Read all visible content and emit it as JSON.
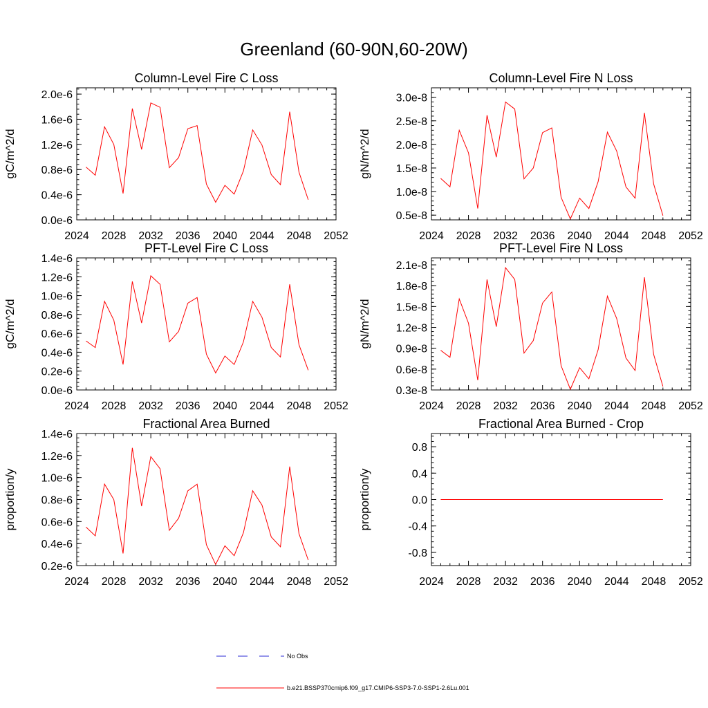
{
  "figure": {
    "title": "Greenland (60-90N,60-20W)"
  },
  "legend": {
    "entries": [
      {
        "label": "No Obs",
        "color": "#2b2bd6",
        "style": "dashed"
      },
      {
        "label": "b.e21.BSSP370cmip6.f09_g17.CMIP6-SSP3-7.0-SSP1-2.6Lu.001",
        "color": "#ff0000",
        "style": "solid"
      }
    ]
  },
  "chart_data": [
    {
      "type": "line",
      "title": "Column-Level Fire C Loss",
      "ylabel": "gC/m^2/d",
      "xlim": [
        2024,
        2052
      ],
      "xticks": [
        "2024",
        "2028",
        "2032",
        "2036",
        "2040",
        "2044",
        "2048",
        "2052"
      ],
      "ylim": [
        0.0,
        2.1
      ],
      "yticks": [
        0.0,
        0.4,
        0.8,
        1.2,
        1.6,
        2.0
      ],
      "ytick_labels": [
        "0.0e-6",
        "0.4e-6",
        "0.8e-6",
        "1.2e-6",
        "1.6e-6",
        "2.0e-6"
      ],
      "x": [
        2025,
        2026,
        2027,
        2028,
        2029,
        2030,
        2031,
        2032,
        2033,
        2034,
        2035,
        2036,
        2037,
        2038,
        2039,
        2040,
        2041,
        2042,
        2043,
        2044,
        2045,
        2046,
        2047,
        2048,
        2049
      ],
      "series": [
        {
          "color": "#ff0000",
          "values": [
            0.84,
            0.71,
            1.48,
            1.2,
            0.42,
            1.77,
            1.12,
            1.86,
            1.79,
            0.83,
            0.99,
            1.45,
            1.5,
            0.57,
            0.28,
            0.55,
            0.41,
            0.78,
            1.43,
            1.19,
            0.72,
            0.56,
            1.72,
            0.76,
            0.32
          ]
        }
      ]
    },
    {
      "type": "line",
      "title": "Column-Level Fire N Loss",
      "ylabel": "gN/m^2/d",
      "xlim": [
        2024,
        2052
      ],
      "xticks": [
        "2024",
        "2028",
        "2032",
        "2036",
        "2040",
        "2044",
        "2048",
        "2052"
      ],
      "ylim": [
        0.4,
        3.2
      ],
      "yticks": [
        0.5,
        1.0,
        1.5,
        2.0,
        2.5,
        3.0
      ],
      "ytick_labels": [
        "0.5e-8",
        "1.0e-8",
        "1.5e-8",
        "2.0e-8",
        "2.5e-8",
        "3.0e-8"
      ],
      "x": [
        2025,
        2026,
        2027,
        2028,
        2029,
        2030,
        2031,
        2032,
        2033,
        2034,
        2035,
        2036,
        2037,
        2038,
        2039,
        2040,
        2041,
        2042,
        2043,
        2044,
        2045,
        2046,
        2047,
        2048,
        2049
      ],
      "series": [
        {
          "color": "#ff0000",
          "values": [
            1.28,
            1.1,
            2.3,
            1.82,
            0.64,
            2.62,
            1.73,
            2.9,
            2.75,
            1.27,
            1.5,
            2.25,
            2.35,
            0.88,
            0.42,
            0.86,
            0.64,
            1.21,
            2.26,
            1.86,
            1.1,
            0.86,
            2.67,
            1.16,
            0.49
          ]
        }
      ]
    },
    {
      "type": "line",
      "title": "PFT-Level Fire C Loss",
      "ylabel": "gC/m^2/d",
      "xlim": [
        2024,
        2052
      ],
      "xticks": [
        "2024",
        "2028",
        "2032",
        "2036",
        "2040",
        "2044",
        "2048",
        "2052"
      ],
      "ylim": [
        0.0,
        1.4
      ],
      "yticks": [
        0.0,
        0.2,
        0.4,
        0.6,
        0.8,
        1.0,
        1.2,
        1.4
      ],
      "ytick_labels": [
        "0.0e-6",
        "0.2e-6",
        "0.4e-6",
        "0.6e-6",
        "0.8e-6",
        "1.0e-6",
        "1.2e-6",
        "1.4e-6"
      ],
      "x": [
        2025,
        2026,
        2027,
        2028,
        2029,
        2030,
        2031,
        2032,
        2033,
        2034,
        2035,
        2036,
        2037,
        2038,
        2039,
        2040,
        2041,
        2042,
        2043,
        2044,
        2045,
        2046,
        2047,
        2048,
        2049
      ],
      "series": [
        {
          "color": "#ff0000",
          "values": [
            0.52,
            0.45,
            0.94,
            0.74,
            0.27,
            1.15,
            0.71,
            1.21,
            1.12,
            0.51,
            0.62,
            0.92,
            0.98,
            0.38,
            0.18,
            0.36,
            0.27,
            0.51,
            0.94,
            0.77,
            0.45,
            0.35,
            1.12,
            0.48,
            0.21
          ]
        }
      ]
    },
    {
      "type": "line",
      "title": "PFT-Level Fire N Loss",
      "ylabel": "gN/m^2/d",
      "xlim": [
        2024,
        2052
      ],
      "xticks": [
        "2024",
        "2028",
        "2032",
        "2036",
        "2040",
        "2044",
        "2048",
        "2052"
      ],
      "ylim": [
        0.3,
        2.2
      ],
      "yticks": [
        0.3,
        0.6,
        0.9,
        1.2,
        1.5,
        1.8,
        2.1
      ],
      "ytick_labels": [
        "0.3e-8",
        "0.6e-8",
        "0.9e-8",
        "1.2e-8",
        "1.5e-8",
        "1.8e-8",
        "2.1e-8"
      ],
      "x": [
        2025,
        2026,
        2027,
        2028,
        2029,
        2030,
        2031,
        2032,
        2033,
        2034,
        2035,
        2036,
        2037,
        2038,
        2039,
        2040,
        2041,
        2042,
        2043,
        2044,
        2045,
        2046,
        2047,
        2048,
        2049
      ],
      "series": [
        {
          "color": "#ff0000",
          "values": [
            0.87,
            0.77,
            1.61,
            1.26,
            0.44,
            1.89,
            1.21,
            2.06,
            1.89,
            0.83,
            1.01,
            1.55,
            1.71,
            0.65,
            0.31,
            0.62,
            0.46,
            0.88,
            1.65,
            1.33,
            0.76,
            0.58,
            1.92,
            0.81,
            0.35
          ]
        }
      ]
    },
    {
      "type": "line",
      "title": "Fractional Area Burned",
      "ylabel": "proportion/y",
      "xlim": [
        2024,
        2052
      ],
      "xticks": [
        "2024",
        "2028",
        "2032",
        "2036",
        "2040",
        "2044",
        "2048",
        "2052"
      ],
      "ylim": [
        0.2,
        1.4
      ],
      "yticks": [
        0.2,
        0.4,
        0.6,
        0.8,
        1.0,
        1.2,
        1.4
      ],
      "ytick_labels": [
        "0.2e-6",
        "0.4e-6",
        "0.6e-6",
        "0.8e-6",
        "1.0e-6",
        "1.2e-6",
        "1.4e-6"
      ],
      "x": [
        2025,
        2026,
        2027,
        2028,
        2029,
        2030,
        2031,
        2032,
        2033,
        2034,
        2035,
        2036,
        2037,
        2038,
        2039,
        2040,
        2041,
        2042,
        2043,
        2044,
        2045,
        2046,
        2047,
        2048,
        2049
      ],
      "series": [
        {
          "color": "#ff0000",
          "values": [
            0.55,
            0.47,
            0.94,
            0.8,
            0.31,
            1.27,
            0.74,
            1.19,
            1.08,
            0.52,
            0.63,
            0.88,
            0.94,
            0.39,
            0.21,
            0.38,
            0.29,
            0.5,
            0.88,
            0.75,
            0.46,
            0.37,
            1.1,
            0.49,
            0.25
          ]
        }
      ]
    },
    {
      "type": "line",
      "title": "Fractional Area Burned - Crop",
      "ylabel": "proportion/y",
      "xlim": [
        2024,
        2052
      ],
      "xticks": [
        "2024",
        "2028",
        "2032",
        "2036",
        "2040",
        "2044",
        "2048",
        "2052"
      ],
      "ylim": [
        -1.0,
        1.0
      ],
      "yticks": [
        -0.8,
        -0.4,
        0.0,
        0.4,
        0.8
      ],
      "ytick_labels": [
        "-0.8",
        "-0.4",
        "0.0",
        "0.4",
        "0.8"
      ],
      "x": [
        2025,
        2026,
        2027,
        2028,
        2029,
        2030,
        2031,
        2032,
        2033,
        2034,
        2035,
        2036,
        2037,
        2038,
        2039,
        2040,
        2041,
        2042,
        2043,
        2044,
        2045,
        2046,
        2047,
        2048,
        2049
      ],
      "series": [
        {
          "color": "#ff0000",
          "values": [
            0,
            0,
            0,
            0,
            0,
            0,
            0,
            0,
            0,
            0,
            0,
            0,
            0,
            0,
            0,
            0,
            0,
            0,
            0,
            0,
            0,
            0,
            0,
            0,
            0
          ]
        }
      ]
    }
  ]
}
